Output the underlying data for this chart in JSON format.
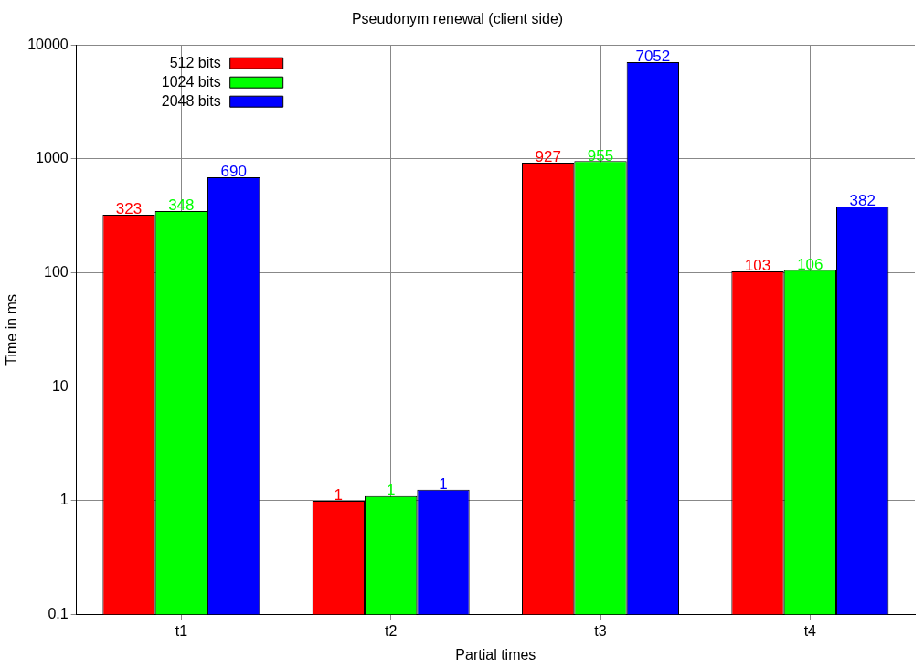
{
  "chart_data": {
    "type": "bar",
    "title": "Pseudonym renewal (client side)",
    "xlabel": "Partial times",
    "ylabel": "Time in ms",
    "categories": [
      "t1",
      "t2",
      "t3",
      "t4"
    ],
    "series": [
      {
        "name": "512 bits",
        "color": "#ff0000",
        "values": [
          323,
          1,
          927,
          103
        ],
        "value_labels": [
          "323",
          "1",
          "927",
          "103"
        ]
      },
      {
        "name": "1024 bits",
        "color": "#00ff00",
        "values": [
          348,
          1.1,
          955,
          106
        ],
        "value_labels": [
          "348",
          "1",
          "955",
          "106"
        ]
      },
      {
        "name": "2048 bits",
        "color": "#0000ff",
        "values": [
          690,
          1.25,
          7052,
          382
        ],
        "value_labels": [
          "690",
          "1",
          "7052",
          "382"
        ]
      }
    ],
    "log": true,
    "ylim": [
      0.1,
      10000
    ],
    "yticks": [
      0.1,
      1,
      10,
      100,
      1000,
      10000
    ],
    "grid": true,
    "legend": "top left"
  }
}
